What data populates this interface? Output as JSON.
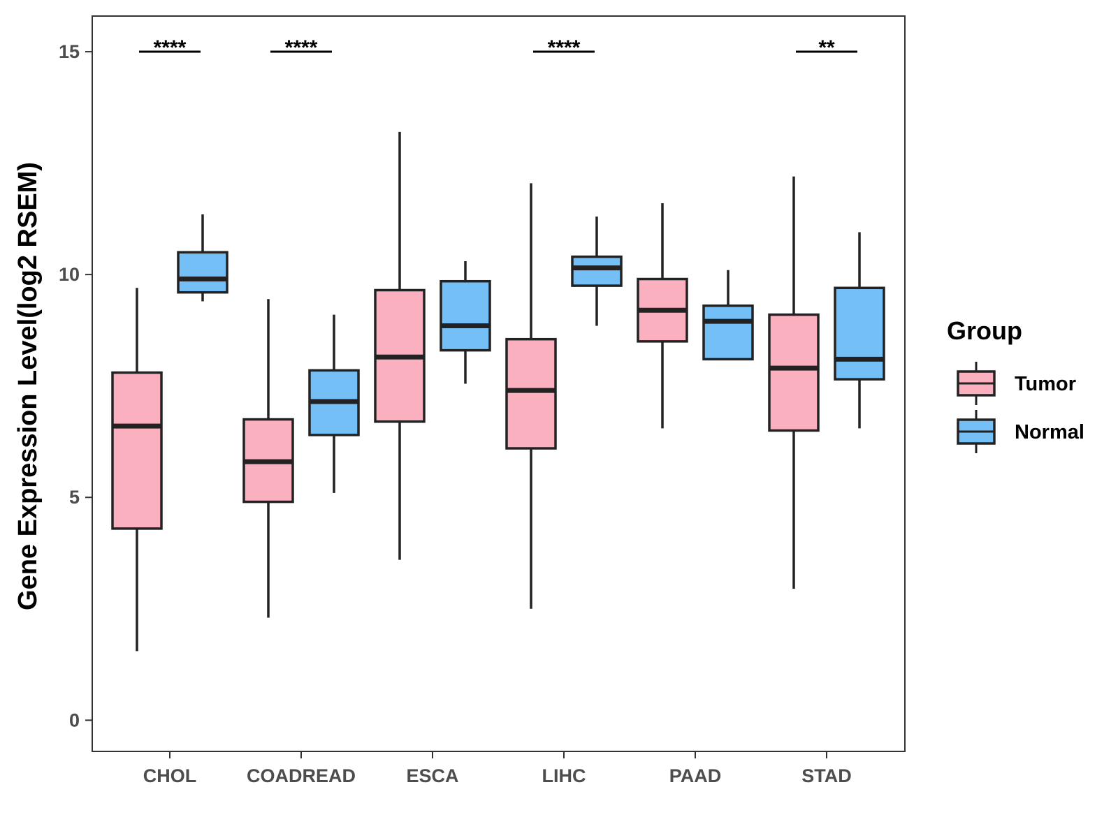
{
  "chart_data": {
    "type": "boxplot",
    "title": "",
    "xlabel": "",
    "ylabel": "Gene Expression Level(log2 RSEM)",
    "ylim": [
      -0.7,
      15.8
    ],
    "yticks": [
      0,
      5,
      10,
      15
    ],
    "categories": [
      "CHOL",
      "COADREAD",
      "ESCA",
      "LIHC",
      "PAAD",
      "STAD"
    ],
    "legend": {
      "title": "Group",
      "position": "right",
      "entries": [
        {
          "name": "Tumor",
          "color": "#FBB0C0"
        },
        {
          "name": "Normal",
          "color": "#75BFF7"
        }
      ]
    },
    "series": [
      {
        "name": "Tumor",
        "color": "#FBB0C0",
        "boxes": [
          {
            "low": 1.55,
            "q1": 4.3,
            "median": 6.6,
            "q3": 7.8,
            "high": 9.7
          },
          {
            "low": 2.3,
            "q1": 4.9,
            "median": 5.8,
            "q3": 6.75,
            "high": 9.45
          },
          {
            "low": 3.6,
            "q1": 6.7,
            "median": 8.15,
            "q3": 9.65,
            "high": 13.2
          },
          {
            "low": 2.5,
            "q1": 6.1,
            "median": 7.4,
            "q3": 8.55,
            "high": 12.05
          },
          {
            "low": 6.55,
            "q1": 8.5,
            "median": 9.2,
            "q3": 9.9,
            "high": 11.6
          },
          {
            "low": 2.95,
            "q1": 6.5,
            "median": 7.9,
            "q3": 9.1,
            "high": 12.2
          }
        ]
      },
      {
        "name": "Normal",
        "color": "#75BFF7",
        "boxes": [
          {
            "low": 9.4,
            "q1": 9.6,
            "median": 9.9,
            "q3": 10.5,
            "high": 11.35
          },
          {
            "low": 5.1,
            "q1": 6.4,
            "median": 7.15,
            "q3": 7.85,
            "high": 9.1
          },
          {
            "low": 7.55,
            "q1": 8.3,
            "median": 8.85,
            "q3": 9.85,
            "high": 10.3
          },
          {
            "low": 8.85,
            "q1": 9.75,
            "median": 10.15,
            "q3": 10.4,
            "high": 11.3
          },
          {
            "low": 8.1,
            "q1": 8.1,
            "median": 8.95,
            "q3": 9.3,
            "high": 10.1
          },
          {
            "low": 6.55,
            "q1": 7.65,
            "median": 8.1,
            "q3": 9.7,
            "high": 10.95
          }
        ]
      }
    ],
    "significance": [
      {
        "category": "CHOL",
        "label": "****",
        "y": 15
      },
      {
        "category": "COADREAD",
        "label": "****",
        "y": 15
      },
      {
        "category": "LIHC",
        "label": "****",
        "y": 15
      },
      {
        "category": "STAD",
        "label": "**",
        "y": 15
      }
    ]
  }
}
